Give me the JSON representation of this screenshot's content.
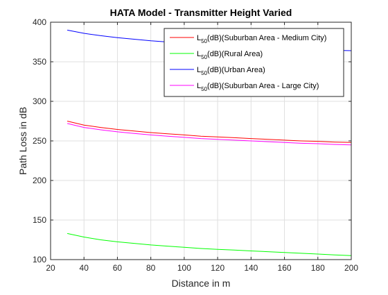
{
  "chart_data": {
    "type": "line",
    "title": "HATA Model - Transmitter Height Varied",
    "xlabel": "Distance in m",
    "ylabel": "Path Loss in dB",
    "xlim": [
      20,
      200
    ],
    "ylim": [
      100,
      400
    ],
    "xticks": [
      20,
      40,
      60,
      80,
      100,
      120,
      140,
      160,
      180,
      200
    ],
    "yticks": [
      100,
      150,
      200,
      250,
      300,
      350,
      400
    ],
    "grid": true,
    "legend_position": "top-right",
    "x": [
      30,
      40,
      50,
      60,
      70,
      80,
      90,
      100,
      110,
      120,
      130,
      140,
      150,
      160,
      170,
      180,
      190,
      200
    ],
    "series": [
      {
        "name": "L50(dB)(Suburban Area - Medium City)",
        "legend_main": "L",
        "legend_sub": "50",
        "legend_rest": "(dB)(Suburban Area - Medium City)",
        "color": "#ff0000",
        "values": [
          275,
          270,
          267,
          264.5,
          262.5,
          260.5,
          259,
          257.5,
          256,
          255,
          254,
          253,
          252,
          251,
          250,
          249.5,
          248.5,
          248
        ]
      },
      {
        "name": "L50(dB)(Rural Area)",
        "legend_main": "L",
        "legend_sub": "50",
        "legend_rest": "(dB)(Rural Area)",
        "color": "#00ff00",
        "values": [
          133,
          128.5,
          125,
          122.5,
          120.5,
          118.5,
          117,
          115.5,
          114,
          113,
          112,
          111,
          110,
          109,
          108,
          107,
          106,
          105
        ]
      },
      {
        "name": "L50(dB)(Urban Area)",
        "legend_main": "L",
        "legend_sub": "50",
        "legend_rest": "(dB)(Urban Area)",
        "color": "#0000ff",
        "values": [
          390,
          386,
          383,
          380.5,
          378.5,
          376.5,
          375,
          373.5,
          372,
          371,
          370,
          369,
          368,
          367,
          366,
          365.5,
          364.5,
          364
        ]
      },
      {
        "name": "L50(dB)(Suburban Area - Large City)",
        "legend_main": "L",
        "legend_sub": "50",
        "legend_rest": "(dB)(Suburban Area - Large City)",
        "color": "#ff00ff",
        "values": [
          272,
          267,
          264,
          261.5,
          259.5,
          257.5,
          256,
          254.5,
          253,
          252,
          251,
          250,
          249,
          248,
          247,
          246.5,
          245.5,
          245
        ]
      }
    ]
  }
}
